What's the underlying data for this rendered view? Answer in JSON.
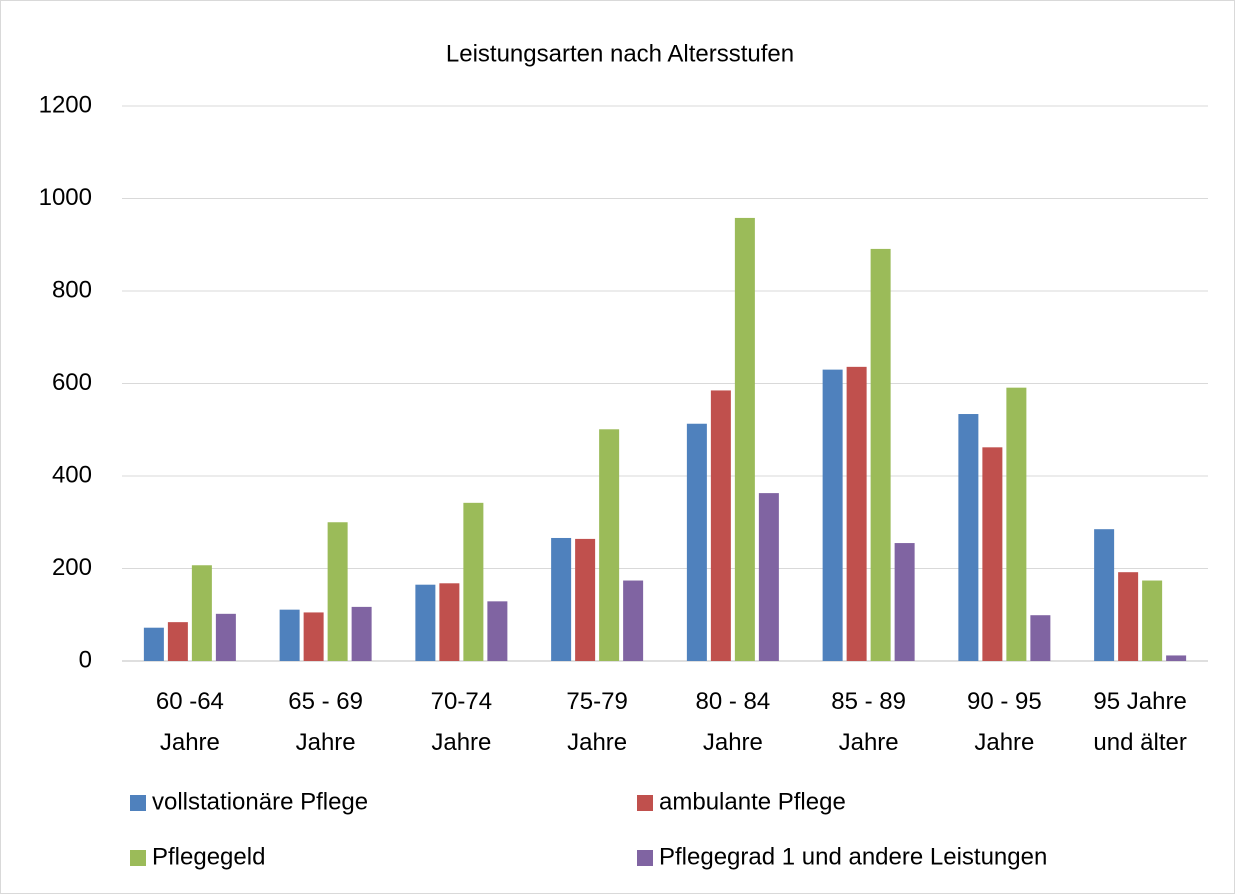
{
  "chart_data": {
    "type": "bar",
    "title": "Leistungsarten nach Altersstufen",
    "categories": [
      "60 -64\nJahre",
      "65 - 69\nJahre",
      "70-74\nJahre",
      "75-79\nJahre",
      "80 - 84\nJahre",
      "85 - 89\nJahre",
      "90 - 95\nJahre",
      "95 Jahre\nund älter"
    ],
    "series": [
      {
        "name": "vollstationäre Pflege",
        "color": "#4f81bd",
        "values": [
          72,
          111,
          165,
          266,
          513,
          630,
          534,
          285
        ]
      },
      {
        "name": "ambulante Pflege",
        "color": "#c0504d",
        "values": [
          84,
          105,
          168,
          264,
          585,
          636,
          462,
          192
        ]
      },
      {
        "name": "Pflegegeld",
        "color": "#9bbb59",
        "values": [
          207,
          300,
          342,
          501,
          958,
          891,
          591,
          174
        ]
      },
      {
        "name": "Pflegegrad 1 und andere Leistungen",
        "color": "#8064a2",
        "values": [
          102,
          117,
          129,
          174,
          363,
          255,
          99,
          12
        ]
      }
    ],
    "ylim": [
      0,
      1200
    ],
    "yticks": [
      0,
      200,
      400,
      600,
      800,
      1000,
      1200
    ],
    "grid": true,
    "legend": "bottom"
  }
}
